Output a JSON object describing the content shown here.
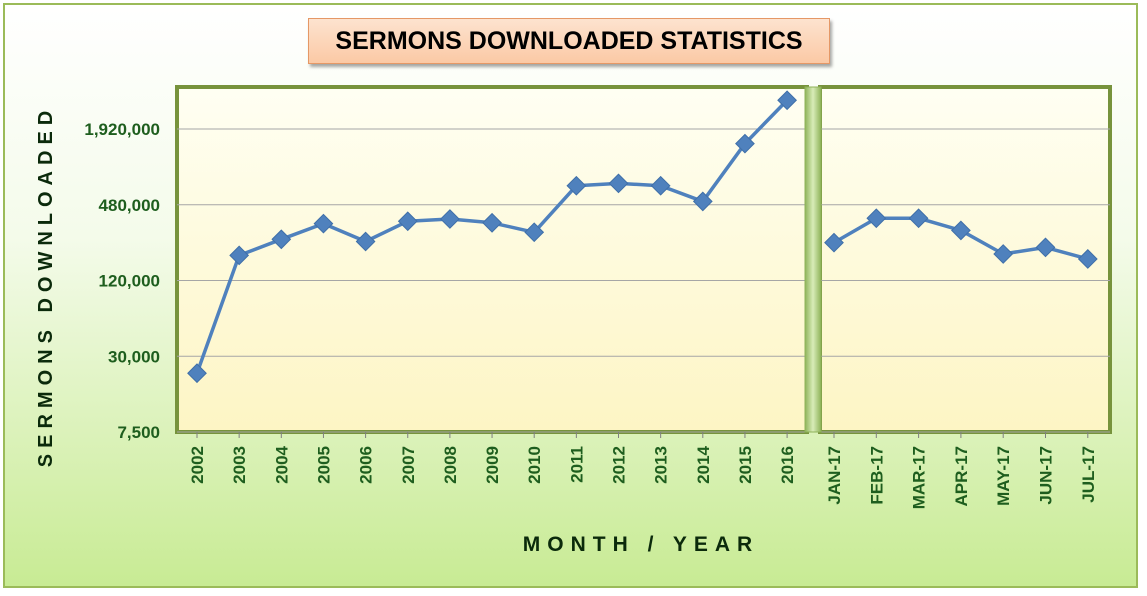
{
  "chart_data": {
    "type": "line",
    "title": "SERMONS DOWNLOADED STATISTICS",
    "xlabel": "MONTH / YEAR",
    "ylabel": "SERMONS DOWNLOADED",
    "yscale": "log",
    "y_ticks": [
      7500,
      30000,
      120000,
      480000,
      1920000
    ],
    "y_tick_labels": [
      "7,500",
      "30,000",
      "120,000",
      "480,000",
      "1,920,000"
    ],
    "ylim": [
      7500,
      4000000
    ],
    "grid": true,
    "panels": [
      {
        "categories": [
          "2002",
          "2003",
          "2004",
          "2005",
          "2006",
          "2007",
          "2008",
          "2009",
          "2010",
          "2011",
          "2012",
          "2013",
          "2014",
          "2015",
          "2016"
        ],
        "values": [
          22000,
          190000,
          255000,
          340000,
          245000,
          355000,
          370000,
          345000,
          290000,
          680000,
          710000,
          680000,
          510000,
          1470000,
          3250000
        ]
      },
      {
        "categories": [
          "JAN-17",
          "FEB-17",
          "MAR-17",
          "APR-17",
          "MAY-17",
          "JUN-17",
          "JUL-17"
        ],
        "values": [
          240000,
          375000,
          375000,
          300000,
          195000,
          220000,
          178000
        ]
      }
    ],
    "colors": {
      "line": "#4f81bd",
      "plot_fill_top": "#fffff0",
      "plot_fill_bottom": "#fdf6c8",
      "plot_border": "#77933c",
      "tick_text": "#1e5e1e",
      "axis_label": "#0b2a0b",
      "divider": "#a9c97a"
    }
  }
}
